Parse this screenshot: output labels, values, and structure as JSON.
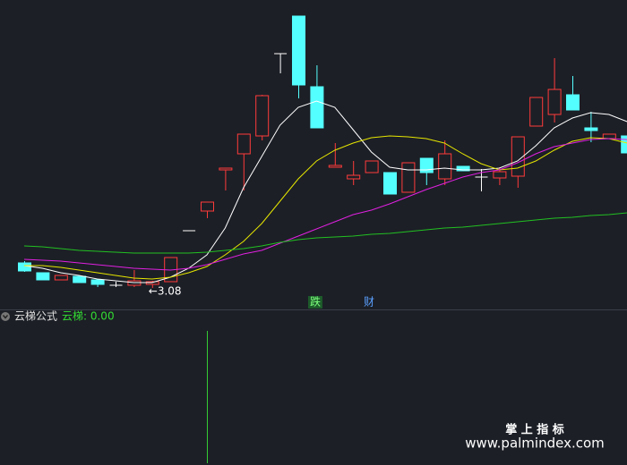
{
  "chart_data": {
    "type": "candlestick",
    "ylim": [
      2.84,
      6.3
    ],
    "open": [
      3.36,
      3.25,
      3.17,
      3.21,
      3.17,
      3.11,
      3.11,
      3.12,
      3.15,
      3.72,
      3.94,
      4.4,
      4.58,
      4.78,
      5.7,
      6.12,
      5.33,
      4.43,
      4.3,
      4.37,
      4.37,
      4.15,
      4.53,
      4.3,
      4.44,
      4.32,
      4.31,
      4.33,
      4.89,
      5.02,
      5.24,
      4.87,
      4.75,
      4.78
    ],
    "high": [
      3.38,
      3.25,
      3.22,
      3.21,
      3.17,
      3.15,
      3.28,
      3.16,
      3.42,
      3.72,
      4.04,
      4.42,
      4.8,
      5.24,
      5.7,
      6.12,
      5.57,
      4.7,
      4.5,
      4.5,
      4.37,
      4.48,
      4.53,
      4.73,
      4.44,
      4.41,
      4.43,
      4.77,
      5.21,
      5.65,
      5.45,
      5.05,
      4.8,
      4.78
    ],
    "low": [
      3.26,
      3.17,
      3.17,
      3.14,
      3.09,
      3.09,
      3.09,
      3.08,
      3.15,
      3.72,
      3.86,
      4.17,
      4.17,
      4.73,
      5.48,
      5.2,
      4.87,
      4.43,
      4.23,
      4.37,
      4.13,
      4.15,
      4.23,
      4.23,
      4.39,
      4.16,
      4.23,
      4.2,
      4.89,
      4.93,
      5.07,
      4.71,
      4.75,
      4.59
    ],
    "close": [
      3.27,
      3.17,
      3.22,
      3.14,
      3.12,
      3.11,
      3.16,
      3.15,
      3.42,
      3.72,
      4.04,
      4.42,
      4.8,
      5.23,
      5.7,
      5.35,
      4.87,
      4.45,
      4.34,
      4.5,
      4.13,
      4.48,
      4.37,
      4.58,
      4.39,
      4.32,
      4.38,
      4.77,
      5.21,
      5.3,
      5.07,
      4.84,
      4.8,
      4.59
    ],
    "up_color": "#ff3b3b",
    "down_color": "#54ffff",
    "flat_color": "#ffffff",
    "series": [
      {
        "color": "#ffffff",
        "values": [
          3.33,
          3.3,
          3.25,
          3.22,
          3.18,
          3.16,
          3.14,
          3.14,
          3.2,
          3.3,
          3.45,
          3.75,
          4.2,
          4.55,
          4.9,
          5.1,
          5.17,
          5.1,
          4.85,
          4.6,
          4.43,
          4.4,
          4.4,
          4.42,
          4.4,
          4.4,
          4.42,
          4.5,
          4.67,
          4.87,
          4.98,
          5.04,
          5.02,
          4.94
        ]
      },
      {
        "color": "#e6e600",
        "values": [
          3.33,
          3.33,
          3.31,
          3.28,
          3.25,
          3.22,
          3.19,
          3.18,
          3.2,
          3.25,
          3.32,
          3.45,
          3.6,
          3.8,
          4.05,
          4.3,
          4.5,
          4.62,
          4.7,
          4.76,
          4.78,
          4.77,
          4.75,
          4.7,
          4.58,
          4.47,
          4.4,
          4.42,
          4.5,
          4.62,
          4.72,
          4.76,
          4.75,
          4.7
        ]
      },
      {
        "color": "#e020e0",
        "values": [
          3.4,
          3.39,
          3.38,
          3.36,
          3.34,
          3.32,
          3.3,
          3.29,
          3.28,
          3.3,
          3.34,
          3.4,
          3.46,
          3.5,
          3.58,
          3.66,
          3.74,
          3.82,
          3.9,
          3.95,
          4.02,
          4.1,
          4.18,
          4.25,
          4.32,
          4.37,
          4.4,
          4.48,
          4.58,
          4.66,
          4.7,
          4.74,
          4.75,
          4.74
        ]
      },
      {
        "color": "#22c022",
        "values": [
          3.55,
          3.54,
          3.52,
          3.5,
          3.49,
          3.48,
          3.47,
          3.47,
          3.47,
          3.47,
          3.48,
          3.5,
          3.52,
          3.55,
          3.59,
          3.62,
          3.64,
          3.65,
          3.66,
          3.68,
          3.69,
          3.71,
          3.73,
          3.75,
          3.76,
          3.78,
          3.8,
          3.82,
          3.84,
          3.86,
          3.87,
          3.89,
          3.9,
          3.92
        ]
      }
    ],
    "low_annotation": "←3.08",
    "markers": [
      "跌",
      "财"
    ],
    "indicator": {
      "name": "云梯公式",
      "label": "云梯: 0.00"
    },
    "watermark": {
      "title": "掌 上 指 标",
      "url": "www.palmindex.com"
    }
  }
}
